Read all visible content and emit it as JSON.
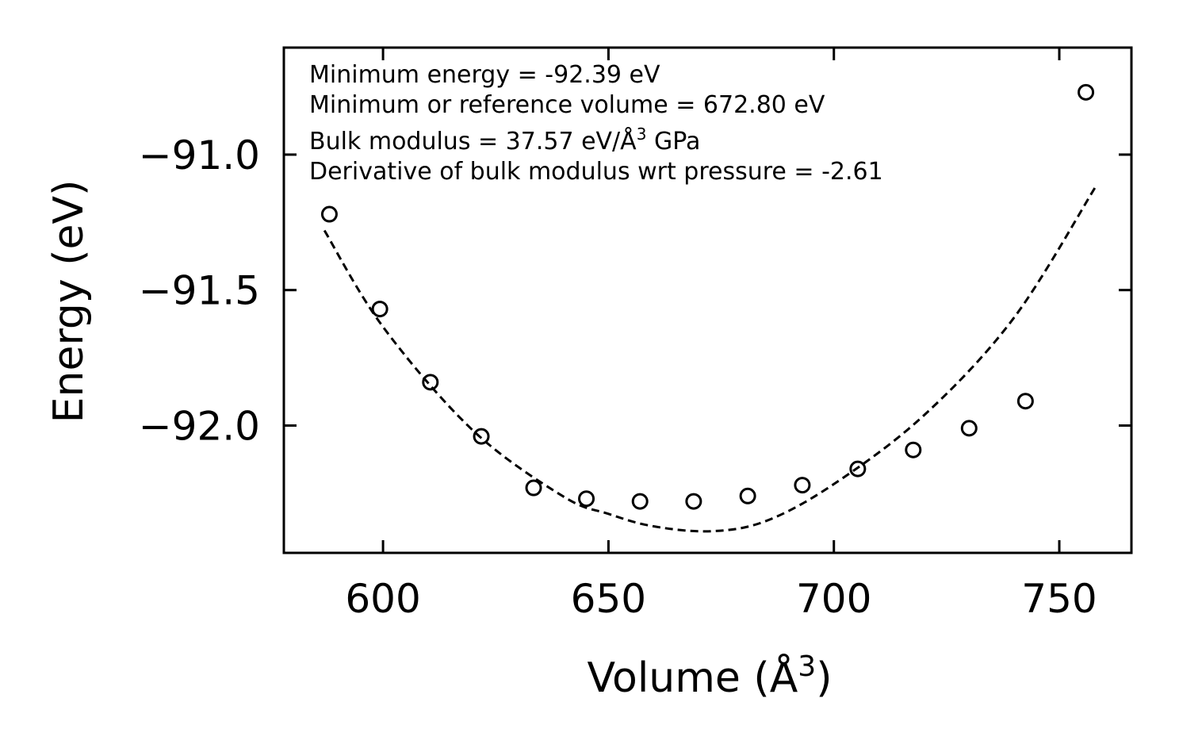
{
  "chart_data": {
    "type": "scatter",
    "title": "",
    "xlabel": "Volume (Å",
    "xlabel_sup": "3",
    "xlabel_close": ")",
    "ylabel": "Energy (eV)",
    "xlim": [
      578,
      766
    ],
    "ylim": [
      -92.47,
      -90.605
    ],
    "xticks": [
      600,
      650,
      700,
      750
    ],
    "xtick_labels": [
      "600",
      "650",
      "700",
      "750"
    ],
    "yticks": [
      -92.0,
      -91.5,
      -91.0
    ],
    "ytick_labels": [
      "−92.0",
      "−91.5",
      "−91.0"
    ],
    "grid": false,
    "legend": "none",
    "series": [
      {
        "name": "data",
        "style": "open-circle",
        "x": [
          588.1,
          599.3,
          610.5,
          621.8,
          633.4,
          645.1,
          657.0,
          668.9,
          680.9,
          693.0,
          705.3,
          717.6,
          730.0,
          742.5,
          755.9
        ],
        "y": [
          -91.22,
          -91.57,
          -91.84,
          -92.04,
          -92.23,
          -92.27,
          -92.28,
          -92.28,
          -92.26,
          -92.22,
          -92.16,
          -92.09,
          -92.01,
          -91.91,
          -90.77
        ]
      },
      {
        "name": "fit",
        "style": "dashed-line",
        "x": [
          587,
          600,
          620,
          640,
          650,
          660,
          672.8,
          685,
          700,
          720,
          740,
          758
        ],
        "y": [
          -91.28,
          -91.636,
          -92.019,
          -92.262,
          -92.326,
          -92.372,
          -92.39,
          -92.352,
          -92.216,
          -91.962,
          -91.601,
          -91.12
        ]
      }
    ],
    "annotations": [
      "Minimum energy = -92.39 eV",
      "Minimum or reference volume = 672.80 eV",
      "Bulk modulus = 37.57 eV/Å",
      "3",
      " GPa",
      "Derivative of bulk modulus wrt pressure = -2.61"
    ]
  }
}
